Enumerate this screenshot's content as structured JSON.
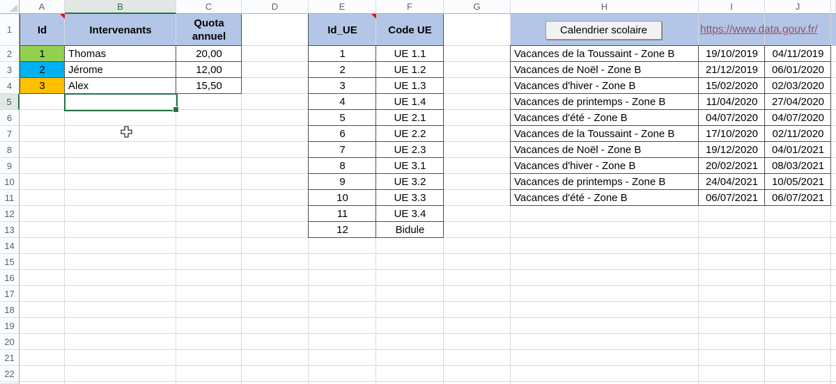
{
  "sheet": {
    "column_letters": [
      "A",
      "B",
      "C",
      "D",
      "E",
      "F",
      "G",
      "H",
      "I",
      "J"
    ],
    "row_numbers": [
      "1",
      "2",
      "3",
      "4",
      "5",
      "6",
      "7",
      "8",
      "9",
      "10",
      "11",
      "12",
      "13",
      "14",
      "15",
      "16",
      "17",
      "18",
      "19",
      "20",
      "21",
      "22"
    ],
    "selected_cell": {
      "column": "B",
      "row": "5"
    }
  },
  "colors": {
    "header_fill": "#B4C6E7",
    "id_green": "#92D050",
    "id_cyan": "#00B0F0",
    "id_orange": "#FFC000",
    "selection_green": "#217346",
    "link_purple": "#954F72"
  },
  "intervenants_table": {
    "headers": {
      "id": "Id",
      "name": "Intervenants",
      "quota": "Quota annuel"
    },
    "rows": [
      {
        "id": "1",
        "name": "Thomas",
        "quota": "20,00",
        "id_fill": "#92D050"
      },
      {
        "id": "2",
        "name": "Jérome",
        "quota": "12,00",
        "id_fill": "#00B0F0"
      },
      {
        "id": "3",
        "name": "Alex",
        "quota": "15,50",
        "id_fill": "#FFC000"
      }
    ]
  },
  "ue_table": {
    "headers": {
      "id": "Id_UE",
      "code": "Code UE"
    },
    "rows": [
      [
        "1",
        "UE 1.1"
      ],
      [
        "2",
        "UE 1.2"
      ],
      [
        "3",
        "UE 1.3"
      ],
      [
        "4",
        "UE 1.4"
      ],
      [
        "5",
        "UE 2.1"
      ],
      [
        "6",
        "UE 2.2"
      ],
      [
        "7",
        "UE 2.3"
      ],
      [
        "8",
        "UE 3.1"
      ],
      [
        "9",
        "UE 3.2"
      ],
      [
        "10",
        "UE 3.3"
      ],
      [
        "11",
        "UE 3.4"
      ],
      [
        "12",
        "Bidule"
      ]
    ]
  },
  "vacances_table": {
    "button_label": "Calendrier scolaire",
    "link_text": "https://www.data.gouv.fr/",
    "rows": [
      [
        "Vacances de la Toussaint - Zone B",
        "19/10/2019",
        "04/11/2019"
      ],
      [
        "Vacances de Noël - Zone B",
        "21/12/2019",
        "06/01/2020"
      ],
      [
        "Vacances d'hiver - Zone B",
        "15/02/2020",
        "02/03/2020"
      ],
      [
        "Vacances de printemps - Zone B",
        "11/04/2020",
        "27/04/2020"
      ],
      [
        "Vacances d'été - Zone B",
        "04/07/2020",
        "04/07/2020"
      ],
      [
        "Vacances de la Toussaint - Zone B",
        "17/10/2020",
        "02/11/2020"
      ],
      [
        "Vacances de Noël - Zone B",
        "19/12/2020",
        "04/01/2021"
      ],
      [
        "Vacances d'hiver - Zone B",
        "20/02/2021",
        "08/03/2021"
      ],
      [
        "Vacances de printemps - Zone B",
        "24/04/2021",
        "10/05/2021"
      ],
      [
        "Vacances d'été - Zone B",
        "06/07/2021",
        "06/07/2021"
      ]
    ]
  }
}
